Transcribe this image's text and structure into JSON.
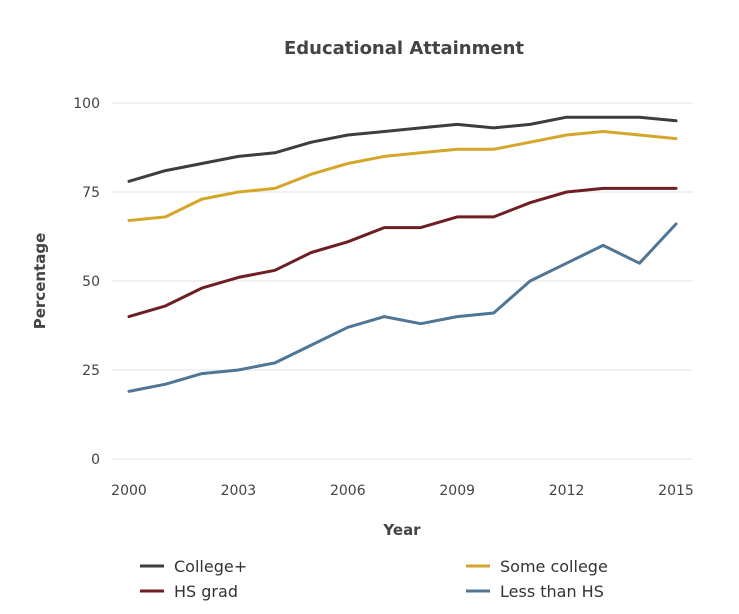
{
  "chart_data": {
    "type": "line",
    "title": "Educational Attainment",
    "xlabel": "Year",
    "ylabel": "Percentage",
    "x": [
      2000,
      2001,
      2002,
      2003,
      2004,
      2005,
      2006,
      2007,
      2008,
      2009,
      2010,
      2011,
      2012,
      2013,
      2014,
      2015
    ],
    "x_ticks": [
      "2000",
      "2003",
      "2006",
      "2009",
      "2012",
      "2015"
    ],
    "y_ticks": [
      "0",
      "25",
      "50",
      "75",
      "100"
    ],
    "xlim": [
      2000,
      2015
    ],
    "ylim": [
      0,
      100
    ],
    "grid": "horizontal",
    "legend_position": "bottom",
    "series": [
      {
        "name": "College+",
        "color": "#3d3d3d",
        "values": [
          78,
          81,
          83,
          85,
          86,
          89,
          91,
          92,
          93,
          94,
          93,
          94,
          96,
          96,
          96,
          95
        ]
      },
      {
        "name": "Some college",
        "color": "#d4a62a",
        "values": [
          67,
          68,
          73,
          75,
          76,
          80,
          83,
          85,
          86,
          87,
          87,
          89,
          91,
          92,
          91,
          90
        ]
      },
      {
        "name": "HS grad",
        "color": "#6e1f23",
        "values": [
          40,
          43,
          48,
          51,
          53,
          58,
          61,
          65,
          65,
          68,
          68,
          72,
          75,
          76,
          76,
          76
        ]
      },
      {
        "name": "Less than HS",
        "color": "#4f7696",
        "values": [
          19,
          21,
          24,
          25,
          27,
          32,
          37,
          40,
          38,
          40,
          41,
          50,
          55,
          60,
          55,
          66
        ]
      }
    ]
  }
}
